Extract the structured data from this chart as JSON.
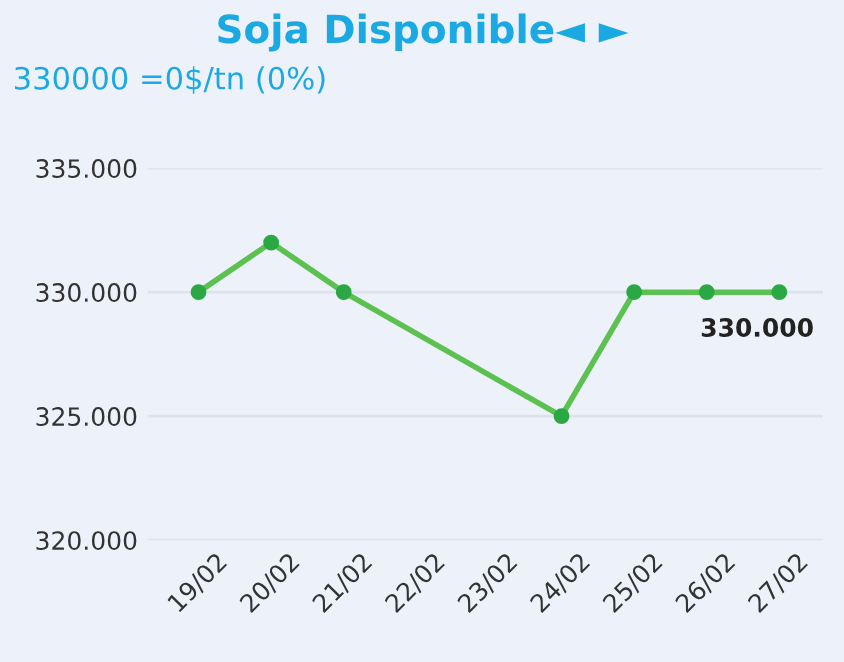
{
  "chart_data": {
    "type": "line",
    "title": "Soja Disponible◄ ►",
    "subtitle": "330000 =0$/tn (0%)",
    "categories": [
      "19/02",
      "20/02",
      "21/02",
      "22/02",
      "23/02",
      "24/02",
      "25/02",
      "26/02",
      "27/02"
    ],
    "series": [
      {
        "color": "#5cc150",
        "values": [
          330000,
          332000,
          330000,
          null,
          null,
          325000,
          330000,
          330000,
          330000
        ],
        "value_labels": [
          null,
          null,
          null,
          null,
          null,
          null,
          null,
          null,
          "330.000"
        ]
      }
    ],
    "ylim": [
      320000,
      335000
    ],
    "yticks": [
      {
        "value": 320000,
        "label": "320.000"
      },
      {
        "value": 325000,
        "label": "325.000"
      },
      {
        "value": 330000,
        "label": "330.000"
      },
      {
        "value": 335000,
        "label": "335.000"
      }
    ],
    "grid": "y",
    "marker": "circle",
    "line_style": "solid",
    "legend": false
  }
}
